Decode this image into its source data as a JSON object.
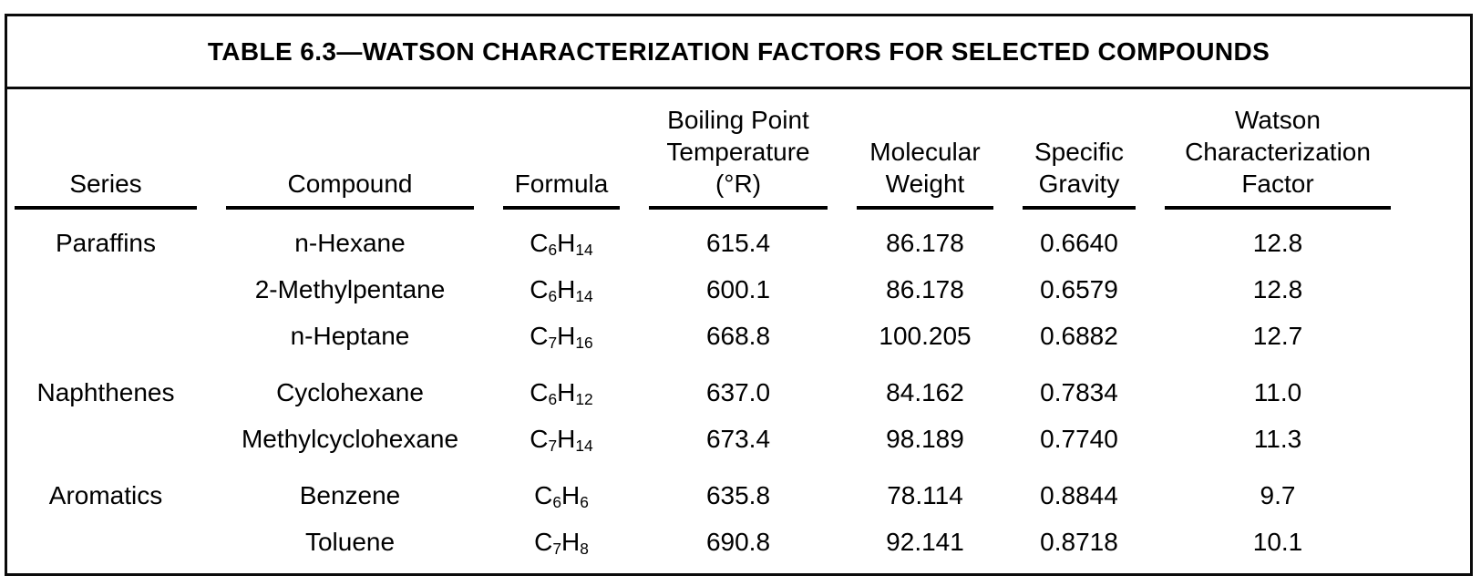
{
  "title": "TABLE 6.3—WATSON CHARACTERIZATION FACTORS FOR SELECTED COMPOUNDS",
  "table": {
    "columns": [
      {
        "key": "series",
        "label": "Series"
      },
      {
        "key": "compound",
        "label": "Compound"
      },
      {
        "key": "formula",
        "label": "Formula"
      },
      {
        "key": "boiling_point",
        "label": "Boiling Point\nTemperature\n(°R)"
      },
      {
        "key": "molecular_weight",
        "label": "Molecular\nWeight"
      },
      {
        "key": "specific_gravity",
        "label": "Specific\nGravity"
      },
      {
        "key": "watson_factor",
        "label": "Watson\nCharacterization\nFactor"
      }
    ],
    "rows": [
      {
        "series": "Paraffins",
        "compound": "n-Hexane",
        "formula": "C6H14",
        "boiling_point": "615.4",
        "molecular_weight": "86.178",
        "specific_gravity": "0.6640",
        "watson_factor": "12.8",
        "group_start": true
      },
      {
        "series": "",
        "compound": "2-Methylpentane",
        "formula": "C6H14",
        "boiling_point": "600.1",
        "molecular_weight": "86.178",
        "specific_gravity": "0.6579",
        "watson_factor": "12.8",
        "group_start": false
      },
      {
        "series": "",
        "compound": "n-Heptane",
        "formula": "C7H16",
        "boiling_point": "668.8",
        "molecular_weight": "100.205",
        "specific_gravity": "0.6882",
        "watson_factor": "12.7",
        "group_start": false
      },
      {
        "series": "Naphthenes",
        "compound": "Cyclohexane",
        "formula": "C6H12",
        "boiling_point": "637.0",
        "molecular_weight": "84.162",
        "specific_gravity": "0.7834",
        "watson_factor": "11.0",
        "group_start": true
      },
      {
        "series": "",
        "compound": "Methylcyclohexane",
        "formula": "C7H14",
        "boiling_point": "673.4",
        "molecular_weight": "98.189",
        "specific_gravity": "0.7740",
        "watson_factor": "11.3",
        "group_start": false
      },
      {
        "series": "Aromatics",
        "compound": "Benzene",
        "formula": "C6H6",
        "boiling_point": "635.8",
        "molecular_weight": "78.114",
        "specific_gravity": "0.8844",
        "watson_factor": "9.7",
        "group_start": true
      },
      {
        "series": "",
        "compound": "Toluene",
        "formula": "C7H8",
        "boiling_point": "690.8",
        "molecular_weight": "92.141",
        "specific_gravity": "0.8718",
        "watson_factor": "10.1",
        "group_start": false
      }
    ]
  }
}
